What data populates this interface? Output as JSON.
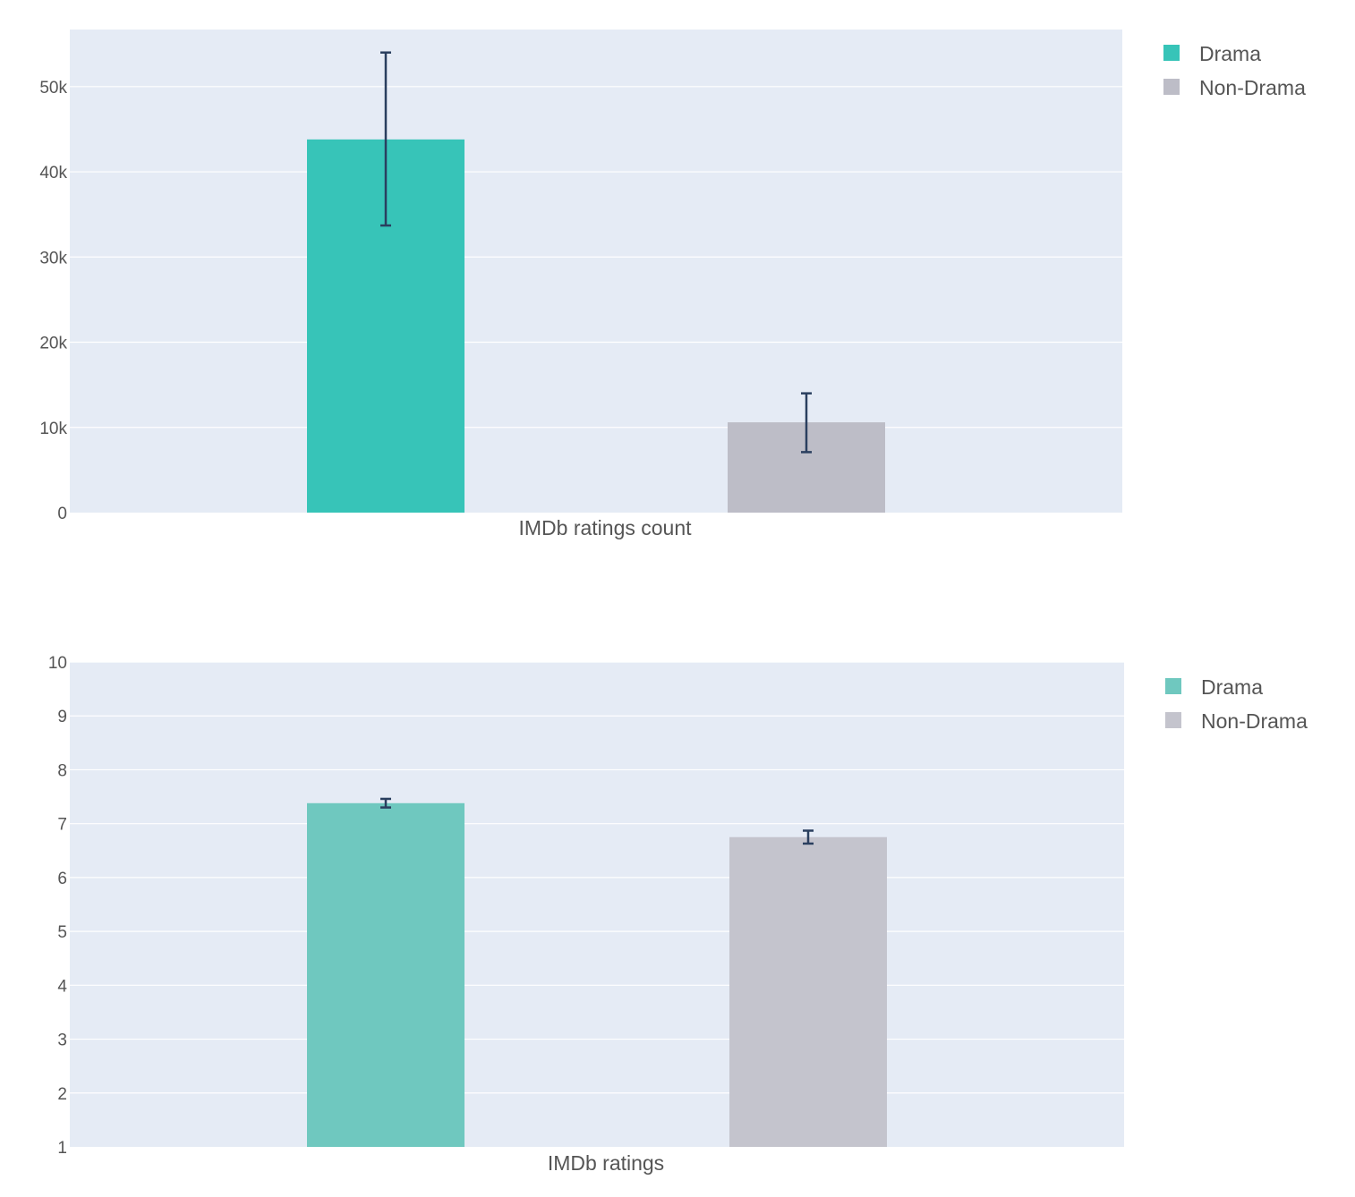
{
  "colors": {
    "plot_background": "#e5ebf5",
    "gridline": "#ffffff",
    "error_bar": "#2a3f5f",
    "tick_text": "#555555"
  },
  "chart_data": [
    {
      "type": "bar",
      "xlabel": "IMDb ratings count",
      "ylim": [
        0,
        56700
      ],
      "yticks": [
        0,
        10000,
        20000,
        30000,
        40000,
        50000
      ],
      "ytick_labels": [
        "0",
        "10k",
        "20k",
        "30k",
        "40k",
        "50k"
      ],
      "grid": true,
      "legend_position": "top-right",
      "series": [
        {
          "name": "Drama",
          "color": "#37c4b8",
          "value": 43800,
          "error_low": 33700,
          "error_high": 54000
        },
        {
          "name": "Non-Drama",
          "color": "#bdbdc7",
          "value": 10600,
          "error_low": 7100,
          "error_high": 14000
        }
      ]
    },
    {
      "type": "bar",
      "xlabel": "IMDb ratings",
      "ylim": [
        1,
        10
      ],
      "yticks": [
        1,
        2,
        3,
        4,
        5,
        6,
        7,
        8,
        9,
        10
      ],
      "ytick_labels": [
        "1",
        "2",
        "3",
        "4",
        "5",
        "6",
        "7",
        "8",
        "9",
        "10"
      ],
      "grid": true,
      "legend_position": "top-right",
      "series": [
        {
          "name": "Drama",
          "color": "#6fc8bf",
          "value": 7.38,
          "error_low": 7.3,
          "error_high": 7.46
        },
        {
          "name": "Non-Drama",
          "color": "#c4c4cd",
          "value": 6.75,
          "error_low": 6.63,
          "error_high": 6.87
        }
      ]
    }
  ]
}
